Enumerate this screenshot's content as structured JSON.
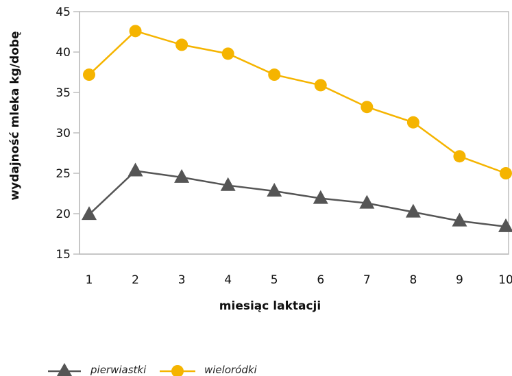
{
  "chart_data": {
    "type": "line",
    "xlabel": "miesiąc laktacji",
    "ylabel": "wydajność mleka kg/dobę",
    "x": [
      1,
      2,
      3,
      4,
      5,
      6,
      7,
      8,
      9,
      10
    ],
    "xticks": [
      "1",
      "2",
      "3",
      "4",
      "5",
      "6",
      "7",
      "8",
      "9",
      "10"
    ],
    "yticks": [
      "15",
      "20",
      "25",
      "30",
      "35",
      "40",
      "45"
    ],
    "ylim": [
      15,
      45
    ],
    "grid": false,
    "legend_position": "bottom-left",
    "series": [
      {
        "name": "pierwiastki",
        "marker": "triangle",
        "color": "#555555",
        "values": [
          19.9,
          25.3,
          24.5,
          23.5,
          22.8,
          21.9,
          21.3,
          20.2,
          19.1,
          18.4
        ]
      },
      {
        "name": "wieloródki",
        "marker": "circle",
        "color": "#F5B400",
        "values": [
          37.2,
          42.6,
          40.9,
          39.8,
          37.2,
          35.9,
          33.2,
          31.3,
          27.1,
          25.0
        ]
      }
    ]
  }
}
